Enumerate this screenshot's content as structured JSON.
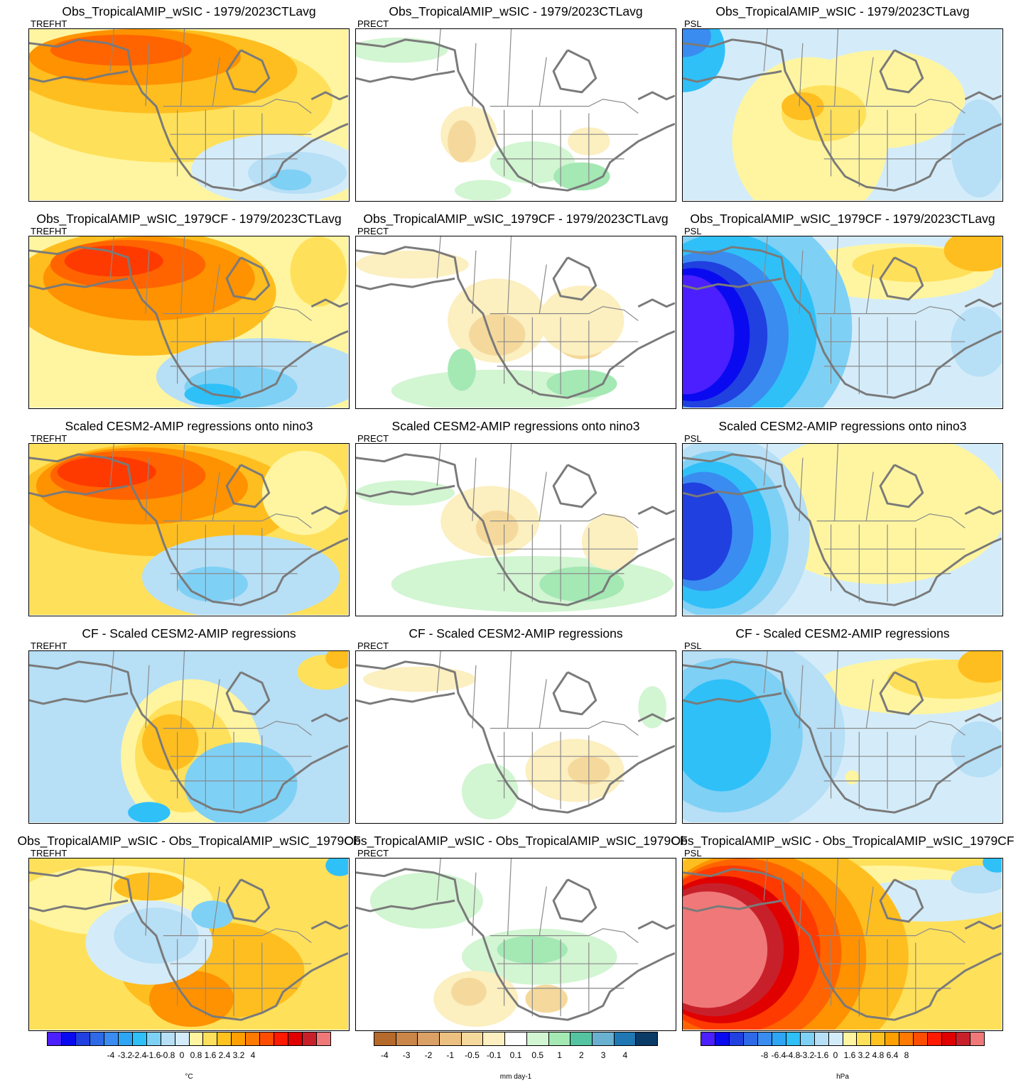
{
  "rows": [
    {
      "title": "Obs_TropicalAMIP_wSIC - 1979/2023CTLavg"
    },
    {
      "title": "Obs_TropicalAMIP_wSIC_1979CF - 1979/2023CTLavg"
    },
    {
      "title": "Scaled CESM2-AMIP regressions onto nino3"
    },
    {
      "title": "CF - Scaled CESM2-AMIP regressions"
    },
    {
      "title": "Obs_TropicalAMIP_wSIC - Obs_TropicalAMIP_wSIC_1979CF"
    }
  ],
  "variables": [
    "TREFHT",
    "PRECT",
    "PSL"
  ],
  "colorbars": [
    {
      "unit": "°C",
      "ticks": [
        "-4",
        "-3.2",
        "-2.4",
        "-1.6",
        "-0.8",
        "0",
        "0.8",
        "1.6",
        "2.4",
        "3.2",
        "4"
      ],
      "colors": [
        "#4b1fff",
        "#0a0af0",
        "#2040e0",
        "#2e6ae8",
        "#3a8cf0",
        "#2ea5f5",
        "#2fc0f8",
        "#7fd0f5",
        "#b7dff6",
        "#d4ecf9",
        "#fff5a0",
        "#ffe05a",
        "#ffc21f",
        "#ffa000",
        "#ff7a00",
        "#ff4d00",
        "#ff1a00",
        "#e00000",
        "#c8202a",
        "#f07878"
      ]
    },
    {
      "unit": "mm day-1",
      "ticks": [
        "-4",
        "-3",
        "-2",
        "-1",
        "-0.5",
        "-0.1",
        "0.1",
        "0.5",
        "1",
        "2",
        "3",
        "4"
      ],
      "colors": [
        "#b5692a",
        "#c98648",
        "#dba066",
        "#ecc080",
        "#f5d99c",
        "#fcefc0",
        "#ffffff",
        "#d2f5d2",
        "#a4e8b4",
        "#55c4a0",
        "#6ab0d0",
        "#1f78b4",
        "#0a3a66"
      ]
    },
    {
      "unit": "hPa",
      "ticks": [
        "-8",
        "-6.4",
        "-4.8",
        "-3.2",
        "-1.6",
        "0",
        "1.6",
        "3.2",
        "4.8",
        "6.4",
        "8"
      ],
      "colors": [
        "#4b1fff",
        "#0a0af0",
        "#2040e0",
        "#2e6ae8",
        "#3a8cf0",
        "#2ea5f5",
        "#2fc0f8",
        "#7fd0f5",
        "#b7dff6",
        "#d4ecf9",
        "#fff5a0",
        "#ffe05a",
        "#ffc21f",
        "#ffa000",
        "#ff7a00",
        "#ff4d00",
        "#ff1a00",
        "#e00000",
        "#c8202a",
        "#f07878"
      ]
    }
  ]
}
